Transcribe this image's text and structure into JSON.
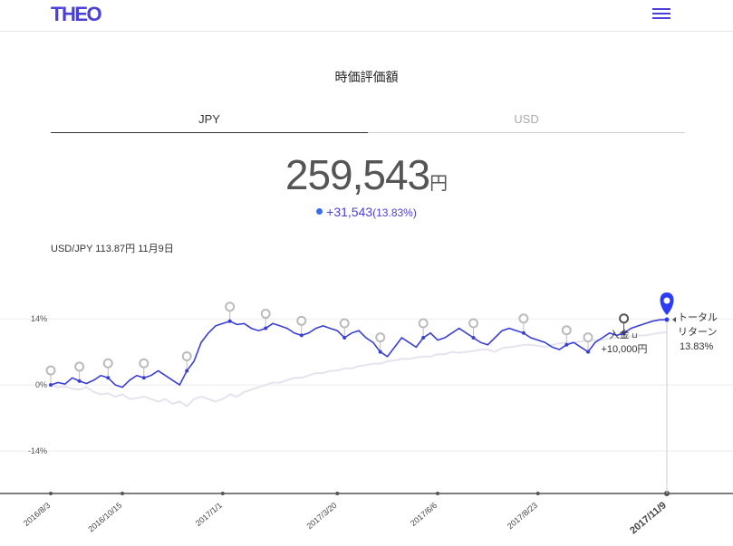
{
  "header": {
    "logo": "THEO",
    "menu_icon": "hamburger-menu-icon",
    "accent": "#4a3fd6"
  },
  "page": {
    "title": "時価評価額"
  },
  "tabs": [
    {
      "label": "JPY",
      "active": true
    },
    {
      "label": "USD",
      "active": false
    }
  ],
  "valuation": {
    "amount": "259,543",
    "unit": "円",
    "change": "+31,543",
    "change_pct": "(13.83%)"
  },
  "fx_rate": "USD/JPY 113.87円 11月9日",
  "annotations": {
    "deposit_label": "入金",
    "deposit_icon": "deposit-icon",
    "deposit_amount": "+10,000円",
    "total_return_line1": "トータル",
    "total_return_line2": "リターン",
    "total_return_value": "13.83%"
  },
  "chart_data": {
    "type": "line",
    "y_ticks": [
      "14%",
      "0%",
      "-14%"
    ],
    "y_tick_values": [
      14,
      0,
      -14
    ],
    "ylim": [
      -23,
      24
    ],
    "x_labels": [
      "2016/8/3",
      "2016/10/15",
      "2017/1/1",
      "2017/3/20",
      "2017/6/6",
      "2017/8/23",
      "2017/11/9"
    ],
    "x_label_index": [
      0,
      10,
      24,
      40,
      54,
      68,
      86
    ],
    "series": [
      {
        "values": [
          0,
          0.5,
          0.2,
          1.5,
          0.8,
          0.3,
          1,
          2,
          1.5,
          0,
          -0.5,
          1,
          2,
          1.5,
          2,
          3,
          2,
          1,
          0,
          3,
          5,
          9,
          11,
          12.5,
          13,
          13.5,
          12.8,
          13,
          12,
          11.5,
          12,
          13,
          12.5,
          12,
          11,
          10.5,
          11,
          12,
          12.5,
          12,
          11.5,
          10,
          11,
          11.5,
          10,
          9,
          7,
          6,
          8,
          10,
          9,
          8,
          10,
          11,
          9.5,
          10,
          11,
          12,
          11,
          10,
          9,
          8.5,
          10,
          11.5,
          12,
          11.5,
          11,
          10,
          9.5,
          9,
          8,
          7.5,
          8.5,
          9,
          8,
          7,
          9,
          10,
          11,
          10.5,
          11,
          12,
          12.5,
          13,
          13.5,
          13.8,
          13.83
        ],
        "color": "#3a3fd6"
      },
      {
        "values": [
          0,
          -0.5,
          -0.3,
          -0.8,
          -1,
          -0.5,
          -1.5,
          -2,
          -1.8,
          -2.5,
          -2,
          -3,
          -2.8,
          -2.5,
          -3,
          -3.5,
          -3,
          -4,
          -3.5,
          -4.5,
          -3,
          -2.5,
          -3,
          -3.5,
          -3,
          -2,
          -2.5,
          -1.5,
          -1,
          -0.5,
          0,
          0.5,
          0.5,
          1,
          1.5,
          1.5,
          2,
          2.5,
          2.5,
          3,
          3,
          3.5,
          3.5,
          4,
          4.2,
          4.5,
          4.5,
          5,
          5.2,
          5.5,
          5.5,
          5.8,
          6,
          6,
          6.5,
          6.5,
          7,
          6.8,
          7,
          7.2,
          7.5,
          7.5,
          7,
          7.8,
          8,
          8.2,
          8.5,
          8.5,
          8.3,
          8,
          8.5,
          8.8,
          9,
          9,
          9.2,
          9.5,
          9.5,
          9.6,
          9.8,
          10,
          10,
          10.3,
          10.5,
          10.5,
          10.8,
          11,
          11.2
        ],
        "color": "#e4e4ef"
      }
    ],
    "markers_at_index": [
      0,
      4,
      8,
      13,
      19,
      25,
      30,
      35,
      41,
      46,
      52,
      59,
      66,
      72,
      75,
      80
    ],
    "deposit_marker_index": 80,
    "grid": "horizontal"
  }
}
